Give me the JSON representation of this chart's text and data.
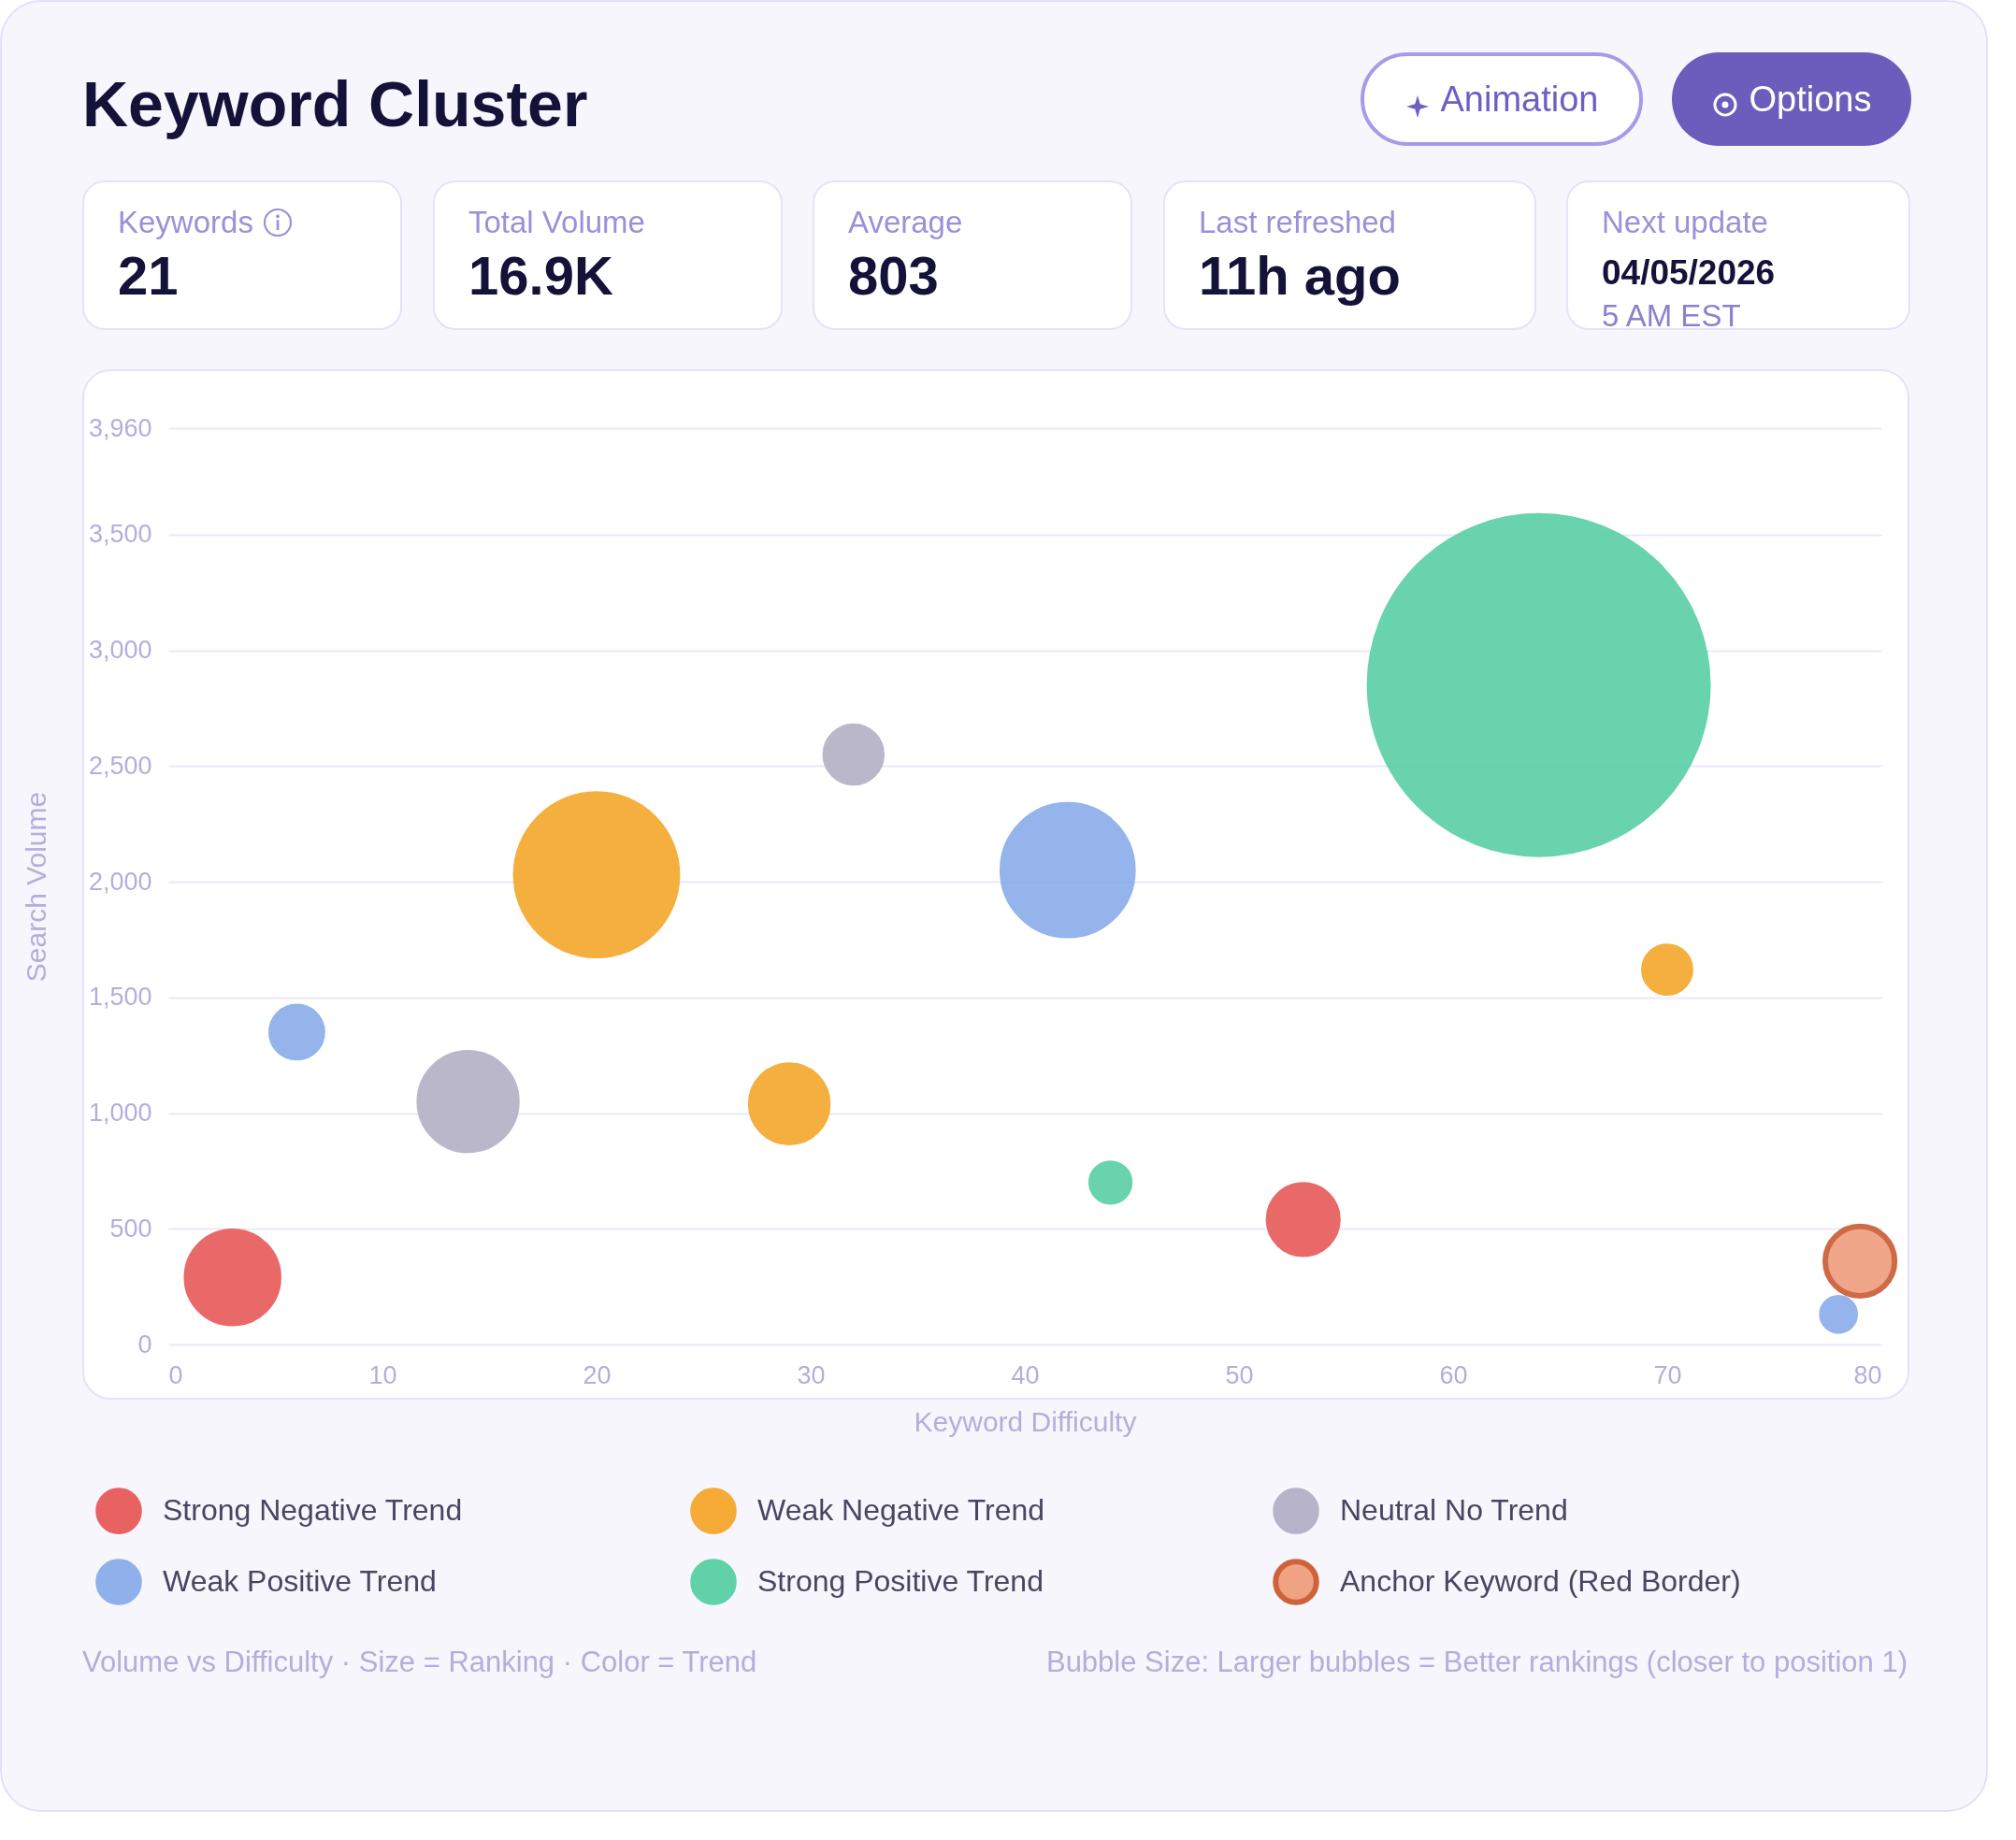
{
  "chart_data": [
    {
      "type": "other",
      "title": "Keyword Cluster",
      "annotations": [
        "Animation",
        "Options",
        "Keywords",
        "21",
        "Total Volume",
        "16.9K",
        "Average",
        "803",
        "Last refreshed",
        "11h ago",
        "Next update",
        "04/05/2026",
        "5 AM EST"
      ]
    },
    {
      "type": "bubble",
      "xlabel": "Keyword Difficulty",
      "ylabel": "Search Volume",
      "xlim": [
        0,
        80
      ],
      "xticks": [
        0,
        10,
        20,
        30,
        40,
        50,
        60,
        70,
        80
      ],
      "ylim": [
        0,
        3960
      ],
      "yticks": [
        0,
        500,
        {
          "value": 1000,
          "label": "1,000"
        },
        {
          "value": 1500,
          "label": "1,500"
        },
        {
          "value": 2000,
          "label": "2,000"
        },
        {
          "value": 2500,
          "label": "2,500"
        },
        {
          "value": 3000,
          "label": "3,000"
        },
        {
          "value": 3500,
          "label": "3,500"
        },
        {
          "value": 3960,
          "label": "3,960"
        }
      ],
      "grid": "y",
      "legend": "bottom",
      "annotations": [
        "Volume vs Difficulty · Size = Ranking · Color = Trend",
        "Bubble Size: Larger bubbles = Better rankings (closer to position 1)"
      ],
      "series": [
        {
          "name": "Strong Negative Trend",
          "color": "#e86262",
          "x": [
            3,
            53
          ],
          "values": [
            290,
            540
          ],
          "sizes": [
            0.074,
            0.042
          ]
        },
        {
          "name": "Weak Negative Trend",
          "color": "#f5ab35",
          "x": [
            20,
            29,
            70
          ],
          "values": [
            2030,
            1040,
            1620
          ],
          "sizes": [
            0.228,
            0.052,
            0.019
          ]
        },
        {
          "name": "Neutral No Trend",
          "color": "#b7b4c9",
          "x": [
            14,
            32
          ],
          "values": [
            1050,
            2550
          ],
          "sizes": [
            0.083,
            0.028
          ]
        },
        {
          "name": "Weak Positive Trend",
          "color": "#8fb0ea",
          "x": [
            6,
            42,
            78
          ],
          "values": [
            1350,
            2050,
            130
          ],
          "sizes": [
            0.023,
            0.149,
            0.0097
          ]
        },
        {
          "name": "Strong Positive Trend",
          "color": "#60d1a9",
          "x": [
            44,
            64
          ],
          "values": [
            700,
            2850
          ],
          "sizes": [
            0.013,
            1
          ]
        },
        {
          "name": "Anchor Keyword (Red Border)",
          "color": "#f0a383",
          "x": [
            79
          ],
          "values": [
            360
          ],
          "sizes": [
            0.042
          ]
        }
      ]
    }
  ]
}
